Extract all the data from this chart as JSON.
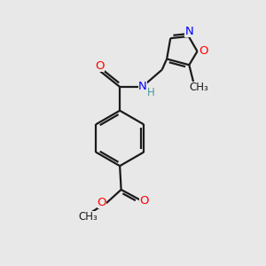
{
  "bg_color": "#e8e8e8",
  "bond_color": "#1a1a1a",
  "N_color": "#0000ff",
  "O_color": "#ff0000",
  "H_color": "#4a9a9a",
  "line_width": 1.6,
  "font_size": 9.5,
  "fig_size": [
    3.0,
    3.0
  ],
  "dpi": 100,
  "xlim": [
    0,
    10
  ],
  "ylim": [
    0,
    10
  ]
}
